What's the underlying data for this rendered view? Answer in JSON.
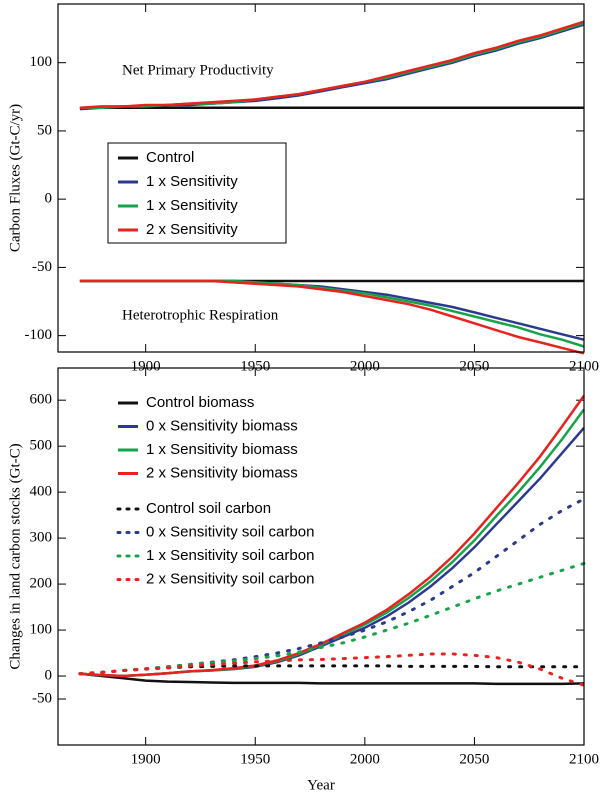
{
  "chart_data": [
    {
      "type": "line",
      "y_label": "Carbon Fluxes (Gt-C/yr)",
      "annotations": [
        "Net Primary Productivity",
        "Heterotrophic Respiration"
      ],
      "x": [
        1870,
        1880,
        1890,
        1900,
        1910,
        1920,
        1930,
        1940,
        1950,
        1960,
        1970,
        1980,
        1990,
        2000,
        2010,
        2020,
        2030,
        2040,
        2050,
        2060,
        2070,
        2080,
        2090,
        2100
      ],
      "xlim": [
        1860,
        2100
      ],
      "xticks": [
        1900,
        1950,
        2000,
        2050,
        2100
      ],
      "ylim": [
        -112,
        143
      ],
      "yticks": [
        -100,
        -50,
        0,
        50,
        100
      ],
      "series": [
        {
          "name": "Control",
          "color": "#111111",
          "npp": [
            67,
            67,
            67,
            67,
            67,
            67,
            67,
            67,
            67,
            67,
            67,
            67,
            67,
            67,
            67,
            67,
            67,
            67,
            67,
            67,
            67,
            67,
            67,
            67
          ],
          "rh": [
            -60,
            -60,
            -60,
            -60,
            -60,
            -60,
            -60,
            -60,
            -60,
            -60,
            -60,
            -60,
            -60,
            -60,
            -60,
            -60,
            -60,
            -60,
            -60,
            -60,
            -60,
            -60,
            -60,
            -60
          ]
        },
        {
          "name": "1 x Sensitivity",
          "color": "#2b3a8f",
          "npp": [
            66,
            67,
            68,
            68,
            69,
            69,
            70,
            71,
            72,
            74,
            76,
            79,
            82,
            85,
            88,
            92,
            96,
            100,
            105,
            109,
            114,
            118,
            123,
            128
          ],
          "rh": [
            -60,
            -60,
            -60,
            -60,
            -60,
            -60,
            -60,
            -60,
            -61,
            -62,
            -63,
            -64,
            -66,
            -68,
            -70,
            -73,
            -76,
            -79,
            -83,
            -87,
            -91,
            -95,
            -99,
            -103
          ]
        },
        {
          "name": "1 x Sensitivity",
          "color": "#17a34a",
          "npp": [
            67,
            67,
            68,
            68,
            69,
            70,
            70,
            71,
            73,
            75,
            77,
            80,
            83,
            86,
            89,
            93,
            97,
            101,
            106,
            110,
            115,
            119,
            124,
            129
          ],
          "rh": [
            -60,
            -60,
            -60,
            -60,
            -60,
            -60,
            -60,
            -60,
            -61,
            -62,
            -63,
            -65,
            -67,
            -69,
            -72,
            -75,
            -78,
            -82,
            -86,
            -90,
            -94,
            -99,
            -103,
            -108
          ]
        },
        {
          "name": "2 x Sensitivity",
          "color": "#e8231f",
          "npp": [
            67,
            68,
            68,
            69,
            69,
            70,
            71,
            72,
            73,
            75,
            77,
            80,
            83,
            86,
            90,
            94,
            98,
            102,
            107,
            111,
            116,
            120,
            125,
            130
          ],
          "rh": [
            -60,
            -60,
            -60,
            -60,
            -60,
            -60,
            -60,
            -61,
            -62,
            -63,
            -64,
            -66,
            -68,
            -71,
            -74,
            -77,
            -81,
            -86,
            -91,
            -96,
            -101,
            -105,
            -109,
            -113
          ]
        }
      ]
    },
    {
      "type": "line",
      "x_label": "Year",
      "y_label": "Changes in land carbon stocks (Gt-C)",
      "x": [
        1870,
        1880,
        1890,
        1900,
        1910,
        1920,
        1930,
        1940,
        1950,
        1960,
        1970,
        1980,
        1990,
        2000,
        2010,
        2020,
        2030,
        2040,
        2050,
        2060,
        2070,
        2080,
        2090,
        2100
      ],
      "xlim": [
        1860,
        2100
      ],
      "xticks": [
        1900,
        1950,
        2000,
        2050,
        2100
      ],
      "ylim": [
        -150,
        670
      ],
      "yticks": [
        -50,
        0,
        100,
        200,
        300,
        400,
        500,
        600
      ],
      "series": [
        {
          "name": "Control biomass",
          "color": "#111111",
          "dotted": false,
          "values": [
            5,
            0,
            -5,
            -10,
            -12,
            -13,
            -14,
            -15,
            -15,
            -15,
            -15,
            -16,
            -16,
            -16,
            -16,
            -16,
            -16,
            -16,
            -16,
            -17,
            -17,
            -17,
            -17,
            -16
          ]
        },
        {
          "name": "0 x Sensitivity biomass",
          "color": "#2b3a8f",
          "dotted": false,
          "values": [
            5,
            2,
            0,
            3,
            6,
            10,
            12,
            15,
            20,
            30,
            45,
            65,
            85,
            105,
            130,
            160,
            195,
            235,
            280,
            330,
            380,
            430,
            485,
            540
          ]
        },
        {
          "name": "1 x Sensitivity biomass",
          "color": "#17a34a",
          "dotted": false,
          "values": [
            5,
            2,
            0,
            3,
            6,
            10,
            12,
            16,
            22,
            32,
            48,
            68,
            90,
            112,
            138,
            170,
            206,
            248,
            295,
            348,
            400,
            455,
            515,
            580
          ]
        },
        {
          "name": "2 x Sensitivity biomass",
          "color": "#e8231f",
          "dotted": false,
          "values": [
            5,
            2,
            0,
            3,
            6,
            10,
            13,
            17,
            23,
            34,
            50,
            70,
            93,
            116,
            144,
            178,
            216,
            260,
            310,
            365,
            420,
            478,
            543,
            610
          ]
        },
        {
          "name": "Control soil carbon",
          "color": "#111111",
          "dotted": true,
          "values": [
            5,
            8,
            12,
            15,
            18,
            20,
            21,
            22,
            22,
            22,
            22,
            22,
            22,
            22,
            22,
            21,
            21,
            21,
            21,
            20,
            20,
            20,
            20,
            20
          ]
        },
        {
          "name": "0 x Sensitivity soil carbon",
          "color": "#2b3a8f",
          "dotted": true,
          "values": [
            5,
            8,
            12,
            16,
            20,
            25,
            30,
            35,
            42,
            50,
            60,
            72,
            85,
            100,
            118,
            140,
            165,
            195,
            225,
            260,
            295,
            330,
            360,
            385
          ]
        },
        {
          "name": "1 x Sensitivity soil carbon",
          "color": "#17a34a",
          "dotted": true,
          "values": [
            5,
            8,
            12,
            16,
            20,
            25,
            29,
            33,
            38,
            44,
            52,
            62,
            72,
            85,
            100,
            115,
            132,
            150,
            168,
            185,
            200,
            215,
            230,
            245
          ]
        },
        {
          "name": "2 x Sensitivity soil carbon",
          "color": "#e8231f",
          "dotted": true,
          "values": [
            5,
            8,
            12,
            15,
            18,
            22,
            25,
            28,
            31,
            33,
            35,
            36,
            38,
            40,
            42,
            45,
            48,
            48,
            45,
            40,
            30,
            15,
            -5,
            -20
          ]
        }
      ]
    }
  ]
}
